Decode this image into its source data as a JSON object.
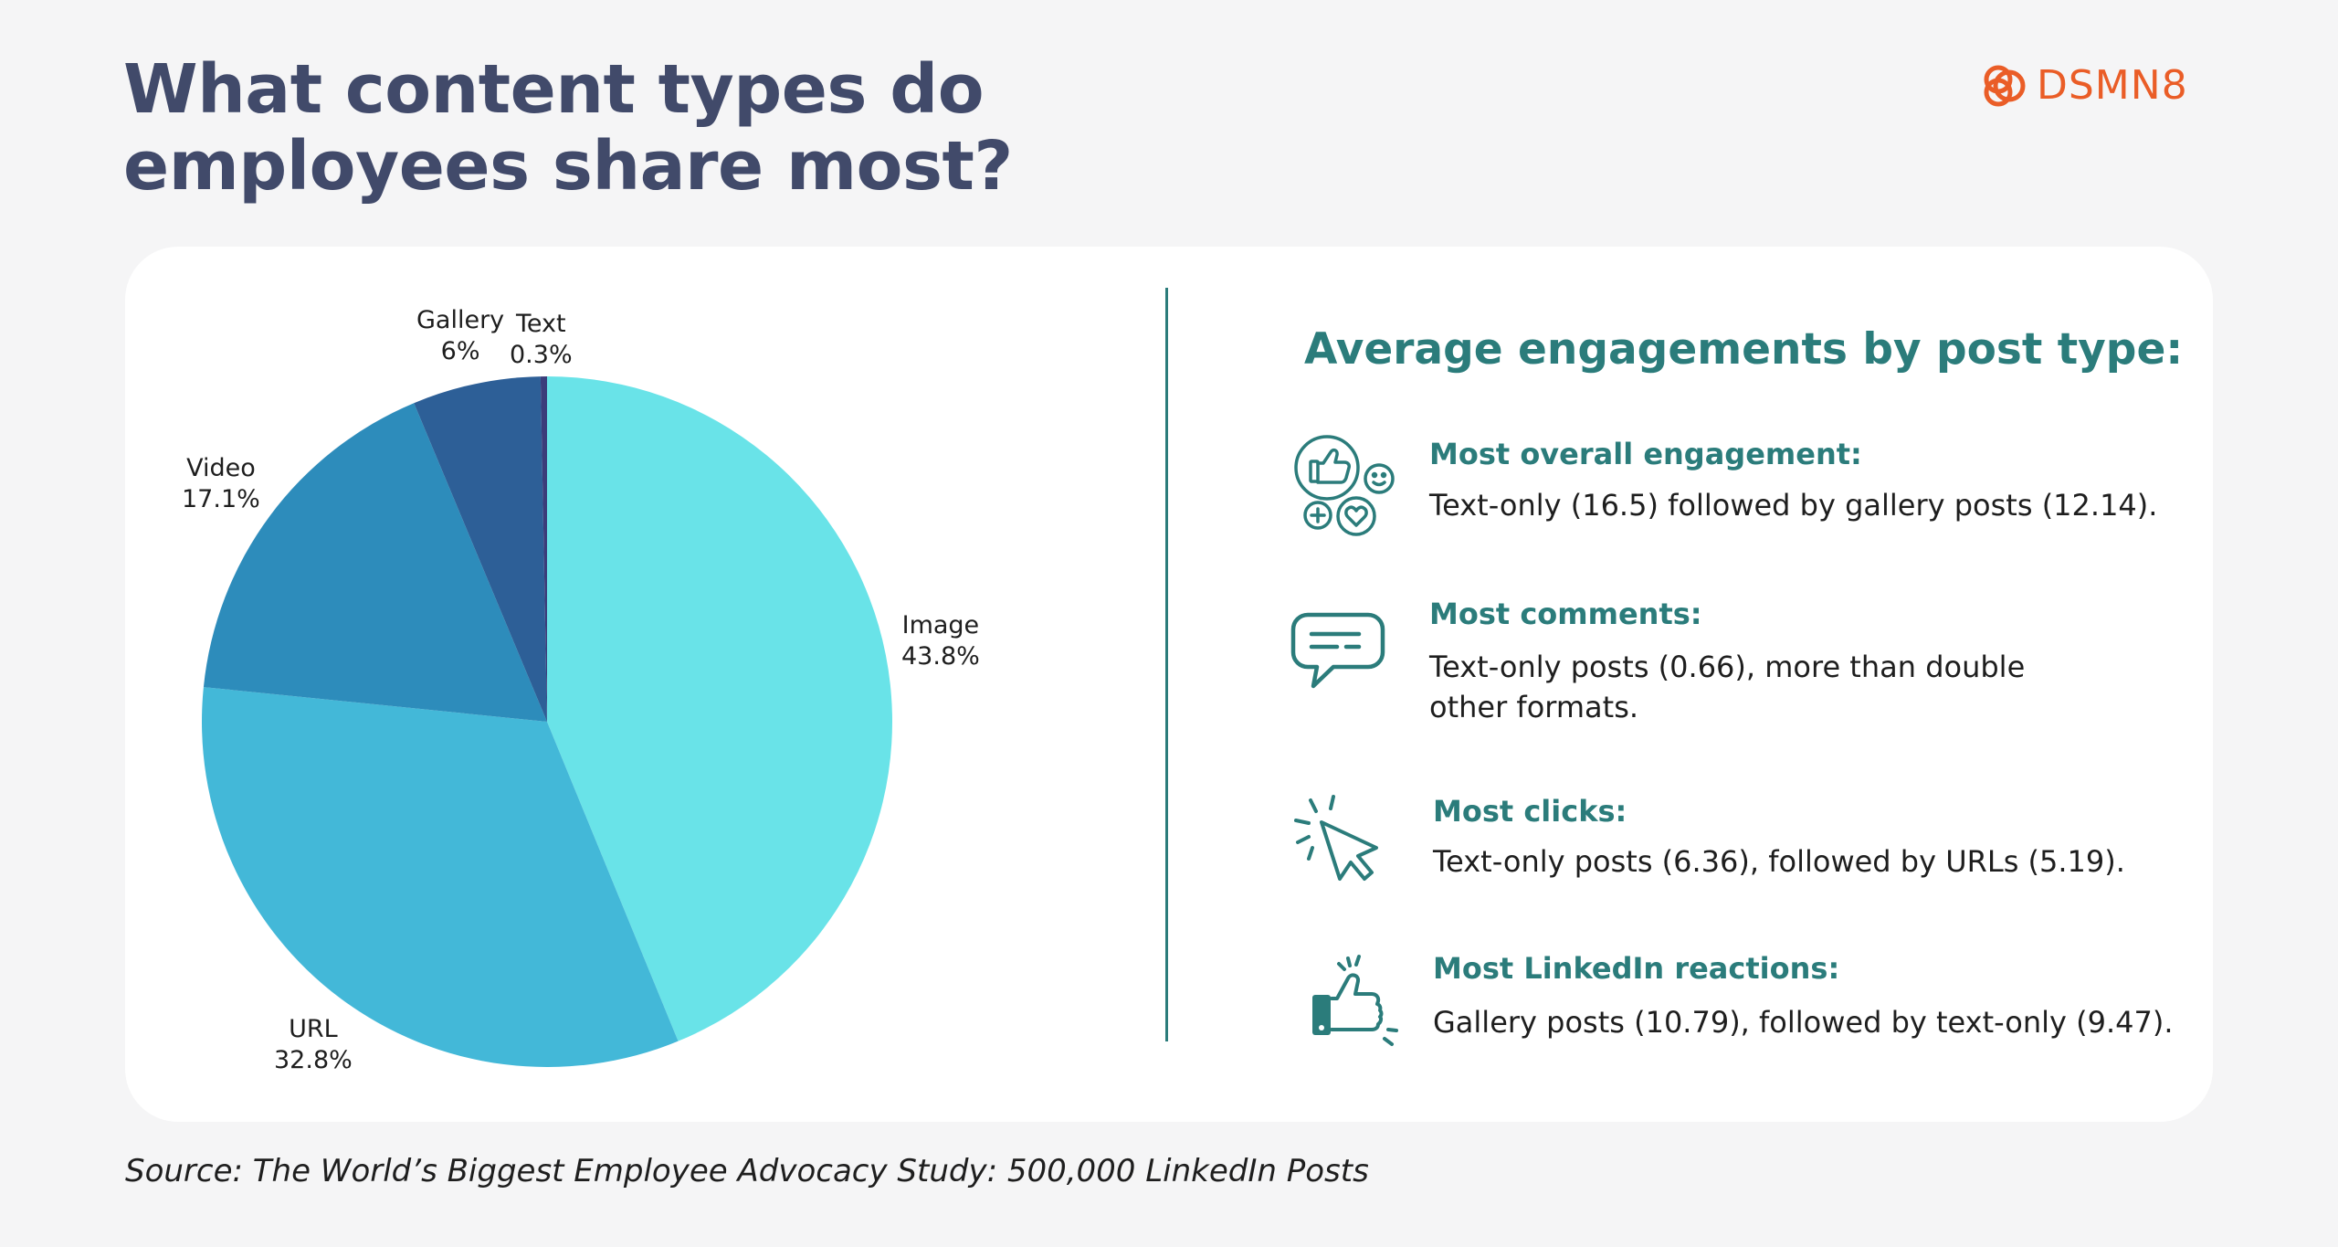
{
  "title": {
    "line1": "What content types do",
    "line2": "employees share most?"
  },
  "logo": {
    "text": "DSMN8",
    "color": "#ea5d27"
  },
  "chart_data": {
    "type": "pie",
    "categories": [
      "Image",
      "URL",
      "Video",
      "Gallery",
      "Text"
    ],
    "values": [
      43.8,
      32.8,
      17.1,
      6,
      0.3
    ],
    "value_labels": [
      "43.8%",
      "32.8%",
      "17.1%",
      "6%",
      "0.3%"
    ],
    "colors": [
      "#69e3e8",
      "#43b8d8",
      "#2d8cbb",
      "#2d5f97",
      "#3b3d7a"
    ]
  },
  "engagement": {
    "heading": "Average engagements by post type:",
    "items": [
      {
        "icon": "engagement-icon",
        "title": "Most overall engagement:",
        "lines": [
          "Text-only (16.5) followed by gallery posts (12.14)."
        ]
      },
      {
        "icon": "comment-icon",
        "title": "Most comments:",
        "lines": [
          "Text-only posts (0.66), more than double",
          "other formats."
        ]
      },
      {
        "icon": "click-icon",
        "title": "Most clicks:",
        "lines": [
          "Text-only posts (6.36), followed by URLs (5.19)."
        ]
      },
      {
        "icon": "thumbs-up-icon",
        "title": "Most LinkedIn reactions:",
        "lines": [
          "Gallery posts (10.79), followed by text-only (9.47)."
        ]
      }
    ]
  },
  "source": "Source: The World’s Biggest Employee Advocacy Study: 500,000 LinkedIn Posts",
  "colors": {
    "accent": "#2b7c7b",
    "title": "#414a6a",
    "background": "#f5f5f6"
  }
}
